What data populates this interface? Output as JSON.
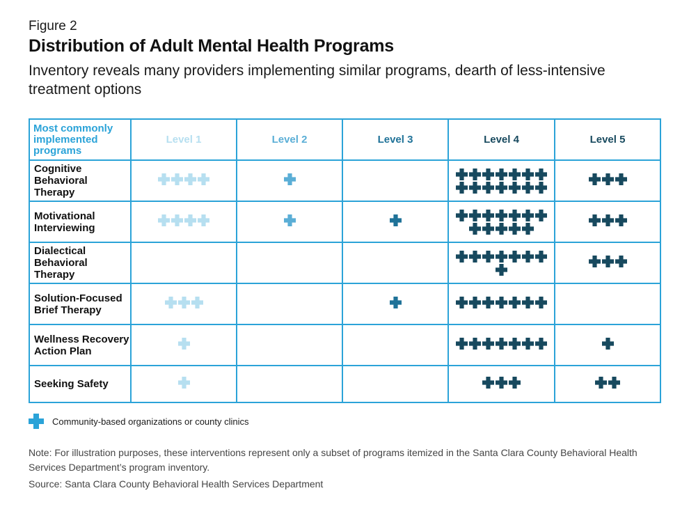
{
  "figure_label": "Figure 2",
  "title": "Distribution of Adult Mental Health Programs",
  "subtitle": "Inventory reveals many providers implementing similar programs, dearth of less-intensive treatment options",
  "legend": {
    "text": "Community-based organizations or county clinics",
    "icon": "plus-icon",
    "color": "#2ba3d8"
  },
  "note": "Note: For illustration purposes, these interventions represent only a subset of programs itemized in the Santa Clara County Behavioral Health Services Department’s program inventory.",
  "source": "Source: Santa Clara County Behavioral Health Services Department",
  "colors": {
    "border": "#2ba3d8",
    "level_1": "#b6dff0",
    "level_2": "#5aaed6",
    "level_3": "#1f7298",
    "level_4": "#17495e",
    "level_5": "#17495e"
  },
  "chart_data": {
    "type": "table",
    "corner_header": "Most commonly implemented programs",
    "columns": [
      "Level 1",
      "Level 2",
      "Level 3",
      "Level 4",
      "Level 5"
    ],
    "rows": [
      {
        "program": "Cognitive Behavioral Therapy",
        "counts": [
          4,
          1,
          0,
          14,
          3
        ]
      },
      {
        "program": "Motivational Interviewing",
        "counts": [
          4,
          1,
          1,
          12,
          3
        ]
      },
      {
        "program": "Dialectical Behavioral Therapy",
        "counts": [
          0,
          0,
          0,
          8,
          3
        ]
      },
      {
        "program": "Solution-Focused Brief Therapy",
        "counts": [
          3,
          0,
          1,
          7,
          0
        ]
      },
      {
        "program": "Wellness Recovery Action Plan",
        "counts": [
          1,
          0,
          0,
          7,
          1
        ]
      },
      {
        "program": "Seeking Safety",
        "counts": [
          1,
          0,
          0,
          3,
          2
        ]
      }
    ]
  }
}
